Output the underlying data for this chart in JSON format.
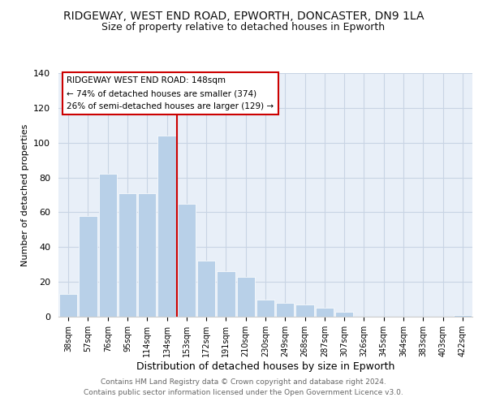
{
  "title": "RIDGEWAY, WEST END ROAD, EPWORTH, DONCASTER, DN9 1LA",
  "subtitle": "Size of property relative to detached houses in Epworth",
  "xlabel": "Distribution of detached houses by size in Epworth",
  "ylabel": "Number of detached properties",
  "bar_labels": [
    "38sqm",
    "57sqm",
    "76sqm",
    "95sqm",
    "114sqm",
    "134sqm",
    "153sqm",
    "172sqm",
    "191sqm",
    "210sqm",
    "230sqm",
    "249sqm",
    "268sqm",
    "287sqm",
    "307sqm",
    "326sqm",
    "345sqm",
    "364sqm",
    "383sqm",
    "403sqm",
    "422sqm"
  ],
  "bar_values": [
    13,
    58,
    82,
    71,
    71,
    104,
    65,
    32,
    26,
    23,
    10,
    8,
    7,
    5,
    3,
    0,
    0,
    0,
    0,
    0,
    1
  ],
  "bar_color": "#b8d0e8",
  "vline_color": "#cc0000",
  "annotation_title": "RIDGEWAY WEST END ROAD: 148sqm",
  "annotation_line1": "← 74% of detached houses are smaller (374)",
  "annotation_line2": "26% of semi-detached houses are larger (129) →",
  "annotation_box_color": "#ffffff",
  "annotation_box_edge": "#cc0000",
  "ylim": [
    0,
    140
  ],
  "yticks": [
    0,
    20,
    40,
    60,
    80,
    100,
    120,
    140
  ],
  "footer1": "Contains HM Land Registry data © Crown copyright and database right 2024.",
  "footer2": "Contains public sector information licensed under the Open Government Licence v3.0.",
  "bg_color": "#ffffff",
  "plot_bg_color": "#e8eff8",
  "grid_color": "#c8d4e4",
  "title_fontsize": 10,
  "subtitle_fontsize": 9,
  "ylabel_fontsize": 8,
  "xlabel_fontsize": 9,
  "tick_fontsize": 7,
  "annotation_fontsize": 7.5,
  "footer_fontsize": 6.5
}
